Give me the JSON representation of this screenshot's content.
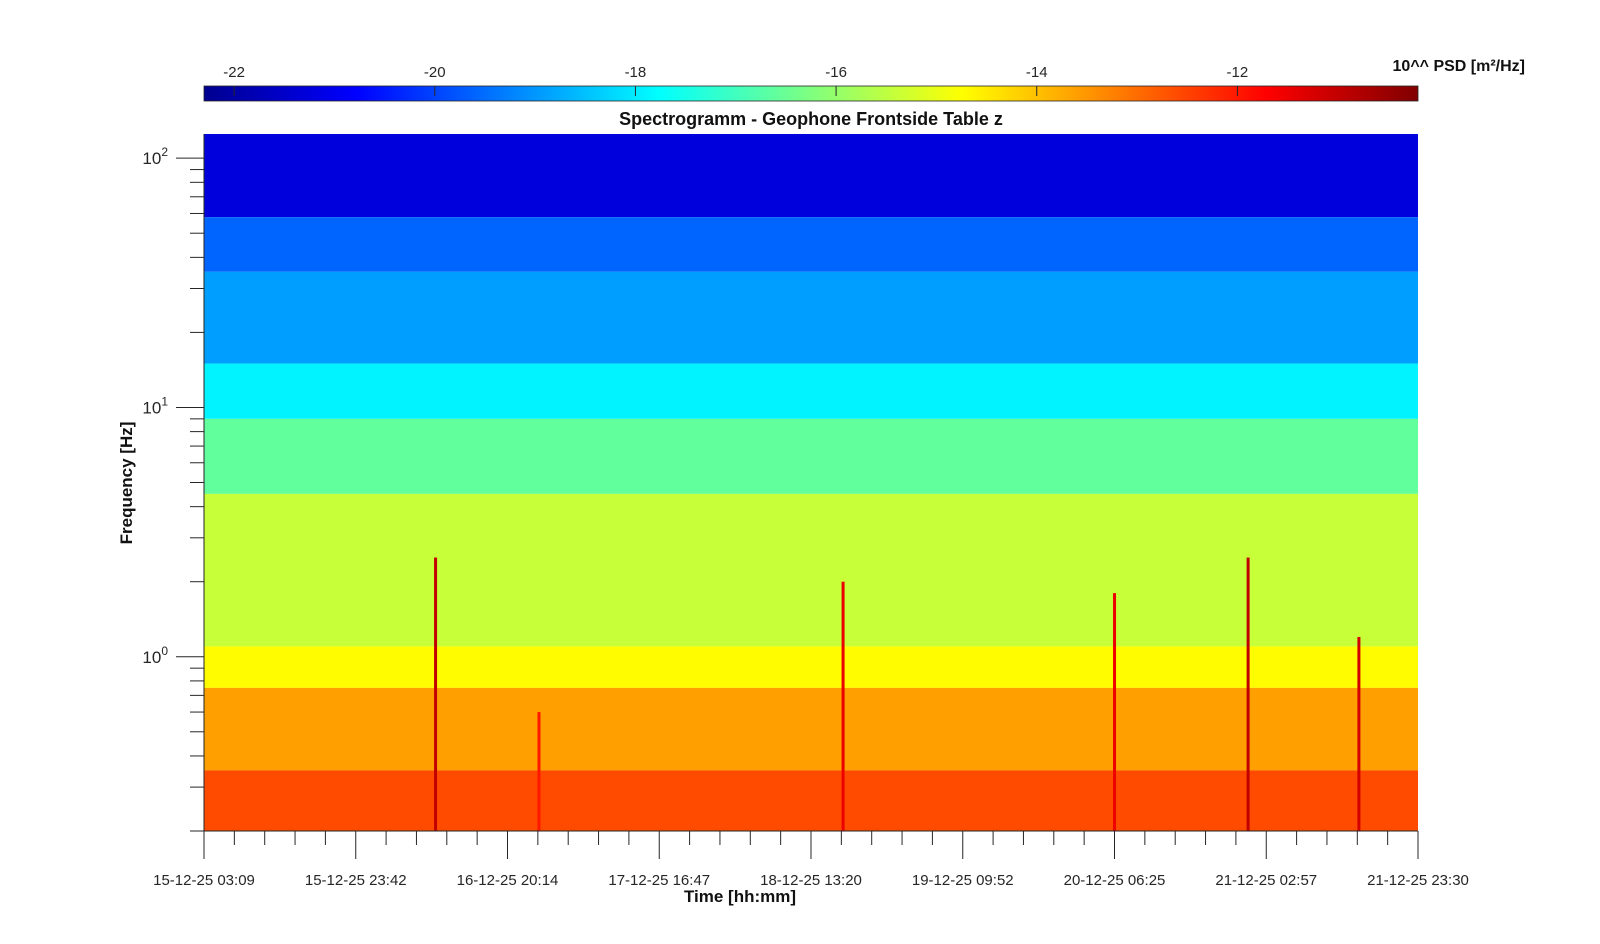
{
  "chart_data": {
    "type": "heatmap",
    "title": "Spectrogramm - Geophone Frontside Table z",
    "xlabel": "Time [hh:mm]",
    "ylabel": "Frequency [Hz]",
    "x_ticks": [
      "15-12-25 03:09",
      "15-12-25 23:42",
      "16-12-25 20:14",
      "17-12-25 16:47",
      "18-12-25 13:20",
      "19-12-25 09:52",
      "20-12-25 06:25",
      "21-12-25 02:57",
      "21-12-25 23:30"
    ],
    "y_scale": "log",
    "y_ticks": [
      {
        "value": 1,
        "base": "10",
        "exp": "0"
      },
      {
        "value": 10,
        "base": "10",
        "exp": "1"
      },
      {
        "value": 100,
        "base": "10",
        "exp": "2"
      }
    ],
    "ylim": [
      0.2,
      125
    ],
    "colorbar": {
      "label": "10^^ PSD [m²/Hz]",
      "ticks": [
        "-22",
        "-20",
        "-18",
        "-16",
        "-14",
        "-12"
      ],
      "tick_values": [
        -22,
        -20,
        -18,
        -16,
        -14,
        -12
      ],
      "range": [
        -22.3,
        -10.2
      ],
      "colormap": "jet"
    },
    "bands": [
      {
        "f_low": 58,
        "f_high": 125,
        "level": -21.2
      },
      {
        "f_low": 35,
        "f_high": 58,
        "level": -19.6
      },
      {
        "f_low": 15,
        "f_high": 35,
        "level": -18.9
      },
      {
        "f_low": 9,
        "f_high": 15,
        "level": -17.9
      },
      {
        "f_low": 4.5,
        "f_high": 9,
        "level": -16.6
      },
      {
        "f_low": 1.1,
        "f_high": 4.5,
        "level": -15.4
      },
      {
        "f_low": 0.75,
        "f_high": 1.1,
        "level": -14.7
      },
      {
        "f_low": 0.35,
        "f_high": 0.75,
        "level": -13.6
      },
      {
        "f_low": 0.2,
        "f_high": 0.35,
        "level": -12.6
      }
    ],
    "events": [
      {
        "time": "16-12-25 10:30",
        "f_top": 2.5,
        "level": -11.0
      },
      {
        "time": "17-12-25 00:30",
        "f_top": 0.6,
        "level": -12.0
      },
      {
        "time": "18-12-25 17:40",
        "f_top": 2.0,
        "level": -11.5
      },
      {
        "time": "20-12-25 06:25",
        "f_top": 1.8,
        "level": -11.5
      },
      {
        "time": "21-12-25 00:30",
        "f_top": 2.5,
        "level": -11.0
      },
      {
        "time": "21-12-25 15:30",
        "f_top": 1.2,
        "level": -11.2
      }
    ],
    "grid": false,
    "colors": {
      "text": "#262626",
      "axis": "#262626"
    }
  }
}
